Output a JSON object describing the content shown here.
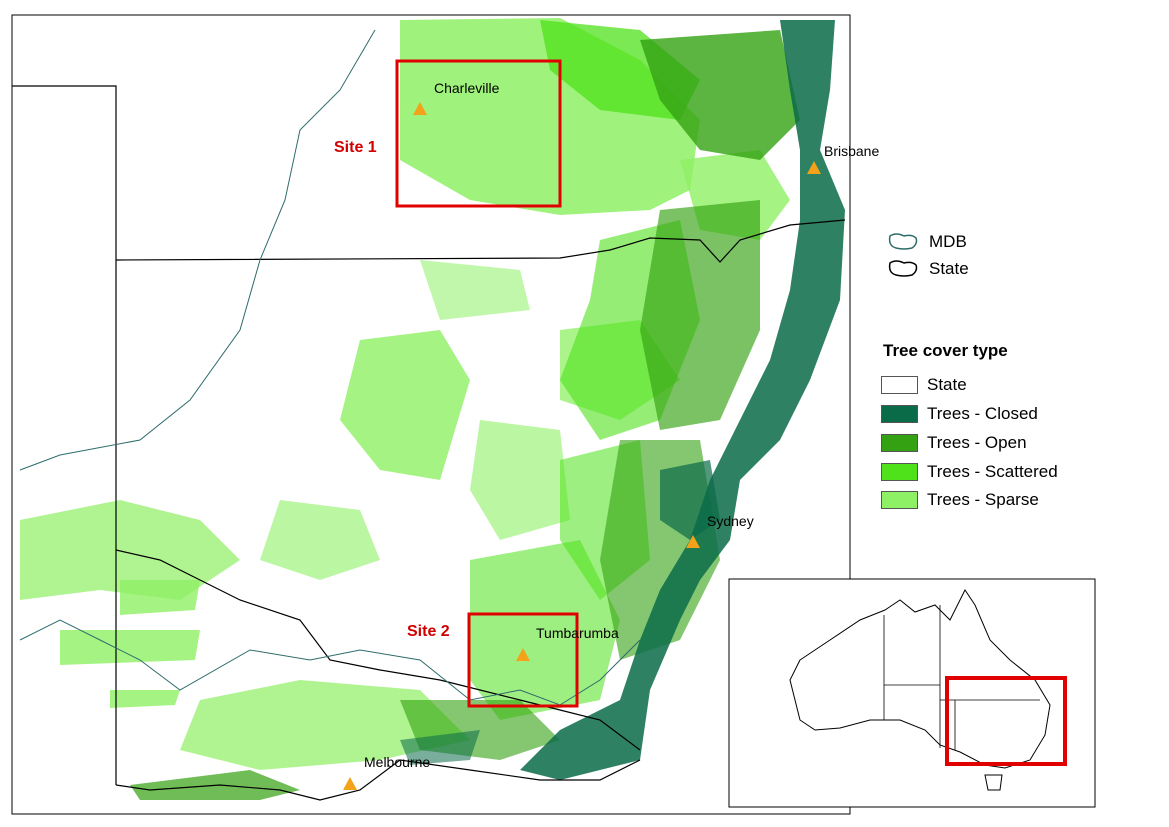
{
  "cities": [
    {
      "name": "Charleville"
    },
    {
      "name": "Brisbane"
    },
    {
      "name": "Sydney"
    },
    {
      "name": "Tumbarumba"
    },
    {
      "name": "Melbourne"
    }
  ],
  "sites": [
    {
      "label": "Site 1"
    },
    {
      "label": "Site 2"
    }
  ],
  "boundary_legend": [
    {
      "label": "MDB",
      "color": "#2e6b6b"
    },
    {
      "label": "State",
      "color": "#000000"
    }
  ],
  "legend": {
    "title": "Tree cover type",
    "items": [
      {
        "label": "State",
        "color": "#ffffff"
      },
      {
        "label": "Trees - Closed",
        "color": "#0a6b48"
      },
      {
        "label": "Trees - Open",
        "color": "#33a111"
      },
      {
        "label": "Trees - Scattered",
        "color": "#4fe11a"
      },
      {
        "label": "Trees - Sparse",
        "color": "#8ef064"
      }
    ]
  },
  "colors": {
    "site_box": "#e00000",
    "city_marker": "#f4a21a",
    "mdb_line": "#2e6b6b"
  }
}
